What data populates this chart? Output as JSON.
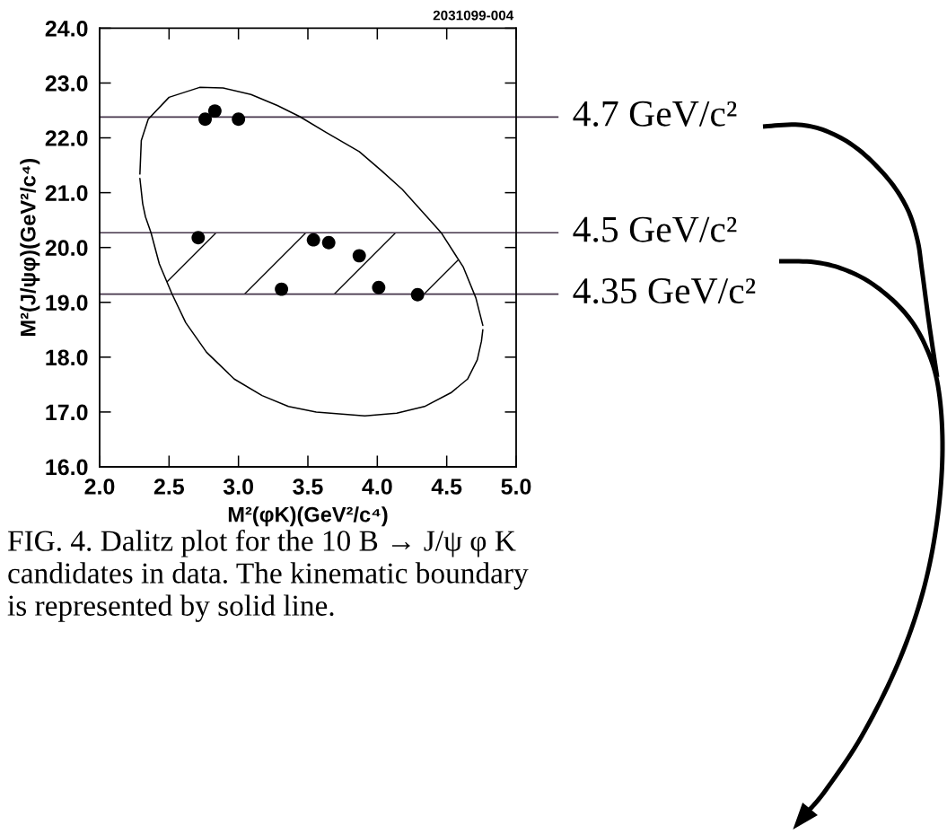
{
  "chart_data": {
    "type": "scatter",
    "xlabel": "M²(φK)(GeV²/c⁴)",
    "ylabel": "M²(J/ψφ)(GeV²/c⁴)",
    "xlim": [
      2.0,
      5.0
    ],
    "ylim": [
      16.0,
      24.0
    ],
    "xticks": [
      {
        "value": 2,
        "label": "2.0"
      },
      2.5,
      {
        "value": 3,
        "label": "3.0"
      },
      3.5,
      {
        "value": 4,
        "label": "4.0"
      },
      4.5,
      {
        "value": 5,
        "label": "5.0"
      }
    ],
    "yticks": [
      {
        "value": 16,
        "label": "16.0"
      },
      {
        "value": 17,
        "label": "17.0"
      },
      {
        "value": 18,
        "label": "18.0"
      },
      {
        "value": 19,
        "label": "19.0"
      },
      {
        "value": 20,
        "label": "20.0"
      },
      {
        "value": 21,
        "label": "21.0"
      },
      {
        "value": 22,
        "label": "22.0"
      },
      {
        "value": 23,
        "label": "23.0"
      },
      {
        "value": 24,
        "label": "24.0"
      }
    ],
    "series": [
      {
        "color": "#000000",
        "marker": "circle",
        "x": [
          2.76,
          2.83,
          3.0,
          2.71,
          3.54,
          3.65,
          3.87,
          3.31,
          4.01,
          4.29
        ],
        "values": [
          22.34,
          22.49,
          22.34,
          20.18,
          20.14,
          20.09,
          19.85,
          19.24,
          19.27,
          19.14
        ]
      },
      {
        "type": "line",
        "color": "#000000",
        "x": [
          2.29,
          2.3,
          2.35,
          2.5,
          2.72,
          2.89,
          3.09,
          3.28,
          3.44,
          3.63,
          3.87,
          4.03,
          4.18,
          4.34,
          4.46,
          4.62,
          4.71,
          4.76
        ],
        "values": [
          21.34,
          21.95,
          22.34,
          22.74,
          22.92,
          22.91,
          22.79,
          22.59,
          22.39,
          22.1,
          21.75,
          21.4,
          21.06,
          20.61,
          20.27,
          19.64,
          19.08,
          18.58
        ]
      },
      {
        "type": "line",
        "color": "#000000",
        "x": [
          2.29,
          2.31,
          2.33,
          2.37,
          2.43,
          2.52,
          2.62,
          2.77,
          2.97,
          3.17,
          3.36,
          3.56,
          3.91,
          4.14,
          4.34,
          4.53,
          4.65,
          4.72,
          4.75,
          4.76
        ],
        "values": [
          21.26,
          20.8,
          20.56,
          20.27,
          19.7,
          19.16,
          18.63,
          18.09,
          17.6,
          17.3,
          17.1,
          17.0,
          16.93,
          16.98,
          17.1,
          17.35,
          17.6,
          17.95,
          18.29,
          18.5
        ]
      }
    ],
    "ref_lines": [
      {
        "axis": "y",
        "value": 22.38,
        "label": "4.7 GeV/c²",
        "color": "#45354a"
      },
      {
        "axis": "y",
        "value": 20.27,
        "label": "4.5 GeV/c²",
        "color": "#45354a"
      },
      {
        "axis": "y",
        "value": 19.15,
        "label": "4.35 GeV/c²",
        "color": "#45354a"
      }
    ],
    "bands": [
      {
        "axis": "y",
        "from": 19.15,
        "to": 20.27,
        "color": "#000000"
      }
    ],
    "annotations": [
      "2031099-004",
      "FIG. 4. Dalitz plot for the 10 B → J/ψ φ K candidates in data. The kinematic boundary is represented by solid line."
    ]
  }
}
